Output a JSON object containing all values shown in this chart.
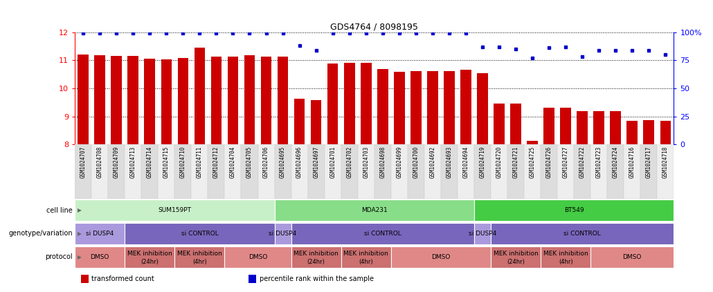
{
  "title": "GDS4764 / 8098195",
  "samples": [
    "GSM1024707",
    "GSM1024708",
    "GSM1024709",
    "GSM1024713",
    "GSM1024714",
    "GSM1024715",
    "GSM1024710",
    "GSM1024711",
    "GSM1024712",
    "GSM1024704",
    "GSM1024705",
    "GSM1024706",
    "GSM1024695",
    "GSM1024696",
    "GSM1024697",
    "GSM1024701",
    "GSM1024702",
    "GSM1024703",
    "GSM1024698",
    "GSM1024699",
    "GSM1024700",
    "GSM1024692",
    "GSM1024693",
    "GSM1024694",
    "GSM1024719",
    "GSM1024720",
    "GSM1024721",
    "GSM1024725",
    "GSM1024726",
    "GSM1024727",
    "GSM1024722",
    "GSM1024723",
    "GSM1024724",
    "GSM1024716",
    "GSM1024717",
    "GSM1024718"
  ],
  "bar_values": [
    11.2,
    11.18,
    11.15,
    11.15,
    11.05,
    11.03,
    11.08,
    11.45,
    11.12,
    11.12,
    11.18,
    11.12,
    11.12,
    9.62,
    9.58,
    10.88,
    10.92,
    10.92,
    10.68,
    10.6,
    10.62,
    10.62,
    10.62,
    10.65,
    10.55,
    9.47,
    9.45,
    8.12,
    9.3,
    9.32,
    9.18,
    9.2,
    9.18,
    8.85,
    8.88,
    8.85
  ],
  "dot_values": [
    99,
    99,
    99,
    99,
    99,
    99,
    99,
    99,
    99,
    99,
    99,
    99,
    99,
    88,
    84,
    99,
    99,
    99,
    99,
    99,
    99,
    99,
    99,
    99,
    87,
    87,
    85,
    77,
    86,
    87,
    78,
    84,
    84,
    84,
    84,
    80
  ],
  "bar_color": "#cc0000",
  "dot_color": "#0000cc",
  "ylim_left": [
    8,
    12
  ],
  "ylim_right": [
    0,
    100
  ],
  "yticks_left": [
    8,
    9,
    10,
    11,
    12
  ],
  "yticks_right": [
    0,
    25,
    50,
    75,
    100
  ],
  "cell_line_data": [
    {
      "label": "SUM159PT",
      "start": 0,
      "end": 12,
      "color": "#c8f0c8"
    },
    {
      "label": "MDA231",
      "start": 12,
      "end": 24,
      "color": "#88dd88"
    },
    {
      "label": "BT549",
      "start": 24,
      "end": 36,
      "color": "#44cc44"
    }
  ],
  "genotype_data": [
    {
      "label": "si DUSP4",
      "start": 0,
      "end": 3,
      "color": "#aa99dd"
    },
    {
      "label": "si CONTROL",
      "start": 3,
      "end": 12,
      "color": "#7766bb"
    },
    {
      "label": "si DUSP4",
      "start": 12,
      "end": 13,
      "color": "#aa99dd"
    },
    {
      "label": "si CONTROL",
      "start": 13,
      "end": 24,
      "color": "#7766bb"
    },
    {
      "label": "si DUSP4",
      "start": 24,
      "end": 25,
      "color": "#aa99dd"
    },
    {
      "label": "si CONTROL",
      "start": 25,
      "end": 36,
      "color": "#7766bb"
    }
  ],
  "protocol_data": [
    {
      "label": "DMSO",
      "start": 0,
      "end": 3,
      "color": "#e08888"
    },
    {
      "label": "MEK inhibition\n(24hr)",
      "start": 3,
      "end": 6,
      "color": "#cc7070"
    },
    {
      "label": "MEK inhibition\n(4hr)",
      "start": 6,
      "end": 9,
      "color": "#cc7070"
    },
    {
      "label": "DMSO",
      "start": 9,
      "end": 13,
      "color": "#e08888"
    },
    {
      "label": "MEK inhibition\n(24hr)",
      "start": 13,
      "end": 16,
      "color": "#cc7070"
    },
    {
      "label": "MEK inhibition\n(4hr)",
      "start": 16,
      "end": 19,
      "color": "#cc7070"
    },
    {
      "label": "DMSO",
      "start": 19,
      "end": 25,
      "color": "#e08888"
    },
    {
      "label": "MEK inhibition\n(24hr)",
      "start": 25,
      "end": 28,
      "color": "#cc7070"
    },
    {
      "label": "MEK inhibition\n(4hr)",
      "start": 28,
      "end": 31,
      "color": "#cc7070"
    },
    {
      "label": "DMSO",
      "start": 31,
      "end": 36,
      "color": "#e08888"
    }
  ],
  "row_labels": [
    "cell line",
    "genotype/variation",
    "protocol"
  ],
  "legend_items": [
    {
      "color": "#cc0000",
      "label": "transformed count"
    },
    {
      "color": "#0000cc",
      "label": "percentile rank within the sample"
    }
  ]
}
